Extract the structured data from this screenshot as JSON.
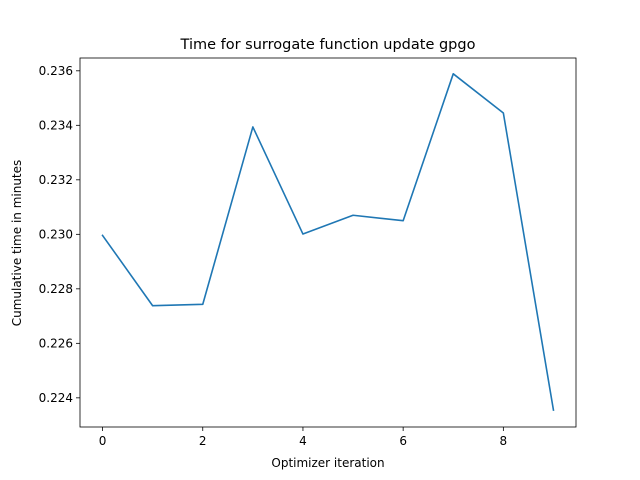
{
  "chart_data": {
    "type": "line",
    "title": "Time for surrogate function update gpgo",
    "xlabel": "Optimizer iteration",
    "ylabel": "Cumulative time in minutes",
    "x": [
      0,
      1,
      2,
      3,
      4,
      5,
      6,
      7,
      8,
      9
    ],
    "series": [
      {
        "name": "gpgo",
        "color": "#1f77b4",
        "values": [
          0.22996,
          0.22738,
          0.22743,
          0.23394,
          0.23001,
          0.2307,
          0.2305,
          0.23589,
          0.23445,
          0.22355
        ]
      }
    ],
    "xlim": [
      -0.45,
      9.45
    ],
    "ylim": [
      0.22293,
      0.23647
    ],
    "xticks": [
      0,
      2,
      4,
      6,
      8
    ],
    "xtick_labels": [
      "0",
      "2",
      "4",
      "6",
      "8"
    ],
    "yticks": [
      0.224,
      0.226,
      0.228,
      0.23,
      0.232,
      0.234,
      0.236
    ],
    "ytick_labels": [
      "0.224",
      "0.226",
      "0.228",
      "0.230",
      "0.232",
      "0.234",
      "0.236"
    ],
    "grid": false,
    "legend": "none"
  }
}
